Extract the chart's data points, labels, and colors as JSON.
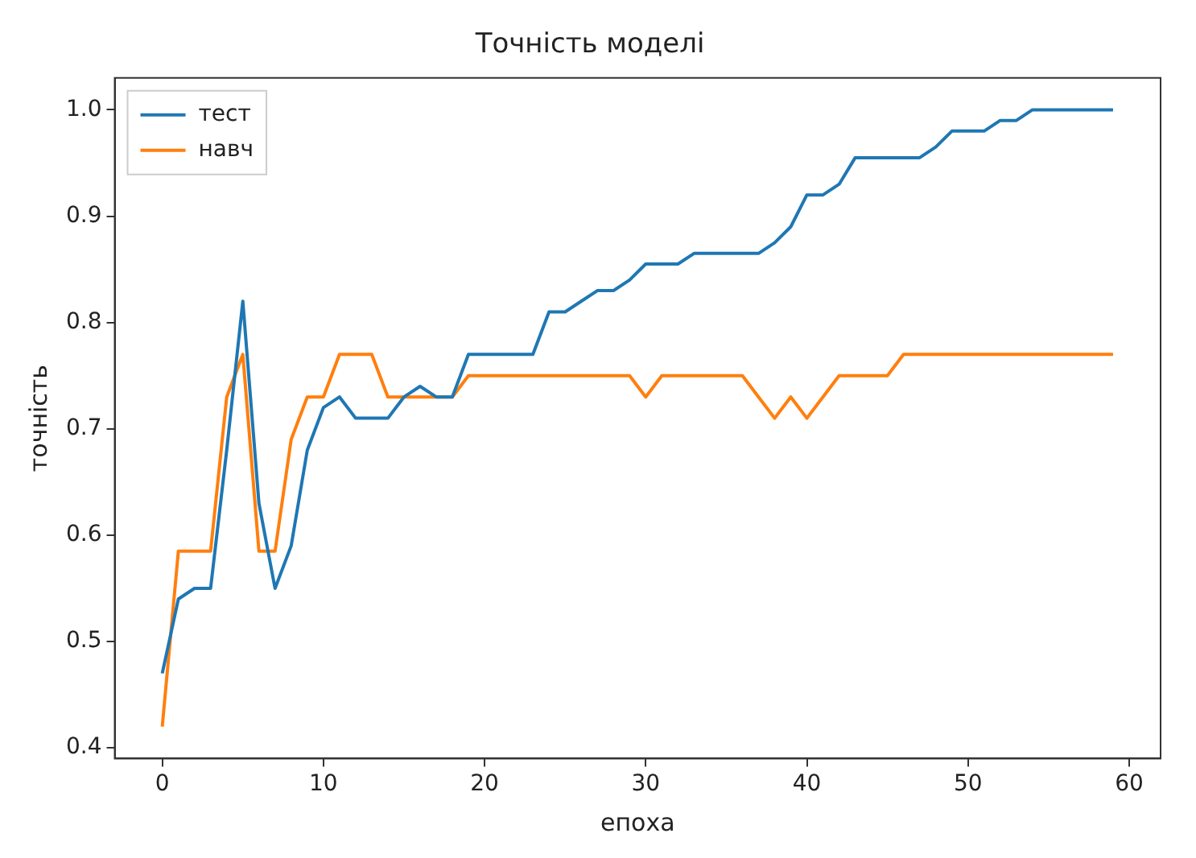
{
  "chart_data": {
    "type": "line",
    "title": "Точність моделі",
    "xlabel": "епоха",
    "ylabel": "точність",
    "x": [
      0,
      1,
      2,
      3,
      4,
      5,
      6,
      7,
      8,
      9,
      10,
      11,
      12,
      13,
      14,
      15,
      16,
      17,
      18,
      19,
      20,
      21,
      22,
      23,
      24,
      25,
      26,
      27,
      28,
      29,
      30,
      31,
      32,
      33,
      34,
      35,
      36,
      37,
      38,
      39,
      40,
      41,
      42,
      43,
      44,
      45,
      46,
      47,
      48,
      49,
      50,
      51,
      52,
      53,
      54,
      55,
      56,
      57,
      58,
      59
    ],
    "series": [
      {
        "name": "тест",
        "color": "#1f77b4",
        "values": [
          0.47,
          0.54,
          0.55,
          0.55,
          0.68,
          0.82,
          0.63,
          0.55,
          0.59,
          0.68,
          0.72,
          0.73,
          0.71,
          0.71,
          0.71,
          0.73,
          0.74,
          0.73,
          0.73,
          0.77,
          0.77,
          0.77,
          0.77,
          0.77,
          0.81,
          0.81,
          0.82,
          0.83,
          0.83,
          0.84,
          0.855,
          0.855,
          0.855,
          0.865,
          0.865,
          0.865,
          0.865,
          0.865,
          0.875,
          0.89,
          0.92,
          0.92,
          0.93,
          0.955,
          0.955,
          0.955,
          0.955,
          0.955,
          0.965,
          0.98,
          0.98,
          0.98,
          0.99,
          0.99,
          1.0,
          1.0,
          1.0,
          1.0,
          1.0,
          1.0
        ]
      },
      {
        "name": "навч",
        "color": "#ff7f0e",
        "values": [
          0.42,
          0.585,
          0.585,
          0.585,
          0.73,
          0.77,
          0.585,
          0.585,
          0.69,
          0.73,
          0.73,
          0.77,
          0.77,
          0.77,
          0.73,
          0.73,
          0.73,
          0.73,
          0.73,
          0.75,
          0.75,
          0.75,
          0.75,
          0.75,
          0.75,
          0.75,
          0.75,
          0.75,
          0.75,
          0.75,
          0.73,
          0.75,
          0.75,
          0.75,
          0.75,
          0.75,
          0.75,
          0.73,
          0.71,
          0.73,
          0.71,
          0.73,
          0.75,
          0.75,
          0.75,
          0.75,
          0.77,
          0.77,
          0.77,
          0.77,
          0.77,
          0.77,
          0.77,
          0.77,
          0.77,
          0.77,
          0.77,
          0.77,
          0.77,
          0.77
        ]
      }
    ],
    "xlim": [
      -2.95,
      61.95
    ],
    "xticks": [
      0,
      10,
      20,
      30,
      40,
      50,
      60
    ],
    "ylim": [
      0.39,
      1.03
    ],
    "yticks": [
      {
        "value": 0.4,
        "label": "0.4"
      },
      {
        "value": 0.5,
        "label": "0.5"
      },
      {
        "value": 0.6,
        "label": "0.6"
      },
      {
        "value": 0.7,
        "label": "0.7"
      },
      {
        "value": 0.8,
        "label": "0.8"
      },
      {
        "value": 0.9,
        "label": "0.9"
      },
      {
        "value": 1.0,
        "label": "1.0"
      }
    ],
    "grid": false,
    "legend": "top left",
    "marker": "none",
    "line_style": "solid"
  }
}
